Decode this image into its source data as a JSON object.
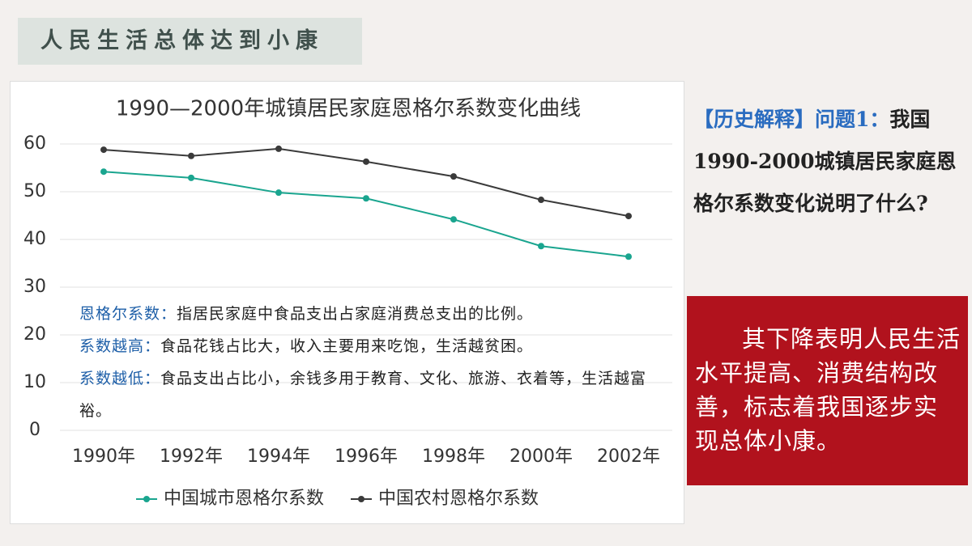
{
  "header": {
    "title": "人民生活总体达到小康"
  },
  "question": {
    "prefix": "【历史解释】问题1：",
    "text": "我国1990-2000城镇居民家庭恩格尔系数变化说明了什么?"
  },
  "answer": {
    "text": "其下降表明人民生活水平提高、消费结构改善，标志着我国逐步实现总体小康。"
  },
  "chart_data": {
    "type": "line",
    "title": "1990—2000年城镇居民家庭恩格尔系数变化曲线",
    "categories": [
      "1990年",
      "1992年",
      "1994年",
      "1996年",
      "1998年",
      "2000年",
      "2002年"
    ],
    "series": [
      {
        "name": "中国城市恩格尔系数",
        "color": "#1aa58f",
        "values": [
          54.2,
          52.9,
          49.8,
          48.6,
          44.2,
          38.6,
          36.4
        ]
      },
      {
        "name": "中国农村恩格尔系数",
        "color": "#3a3a3a",
        "values": [
          58.8,
          57.5,
          59.0,
          56.3,
          53.2,
          48.3,
          44.9
        ]
      }
    ],
    "ylim": [
      0,
      60
    ],
    "yticks": [
      0,
      10,
      20,
      30,
      40,
      50,
      60
    ],
    "grid": true,
    "annotations": [
      {
        "term": "恩格尔系数：",
        "text": "指居民家庭中食品支出占家庭消费总支出的比例。"
      },
      {
        "term": "系数越高：",
        "text": "食品花钱占比大，收入主要用来吃饱，生活越贫困。"
      },
      {
        "term": "系数越低：",
        "text": "食品支出占比小，余钱多用于教育、文化、旅游、衣着等，生活越富裕。"
      }
    ]
  }
}
